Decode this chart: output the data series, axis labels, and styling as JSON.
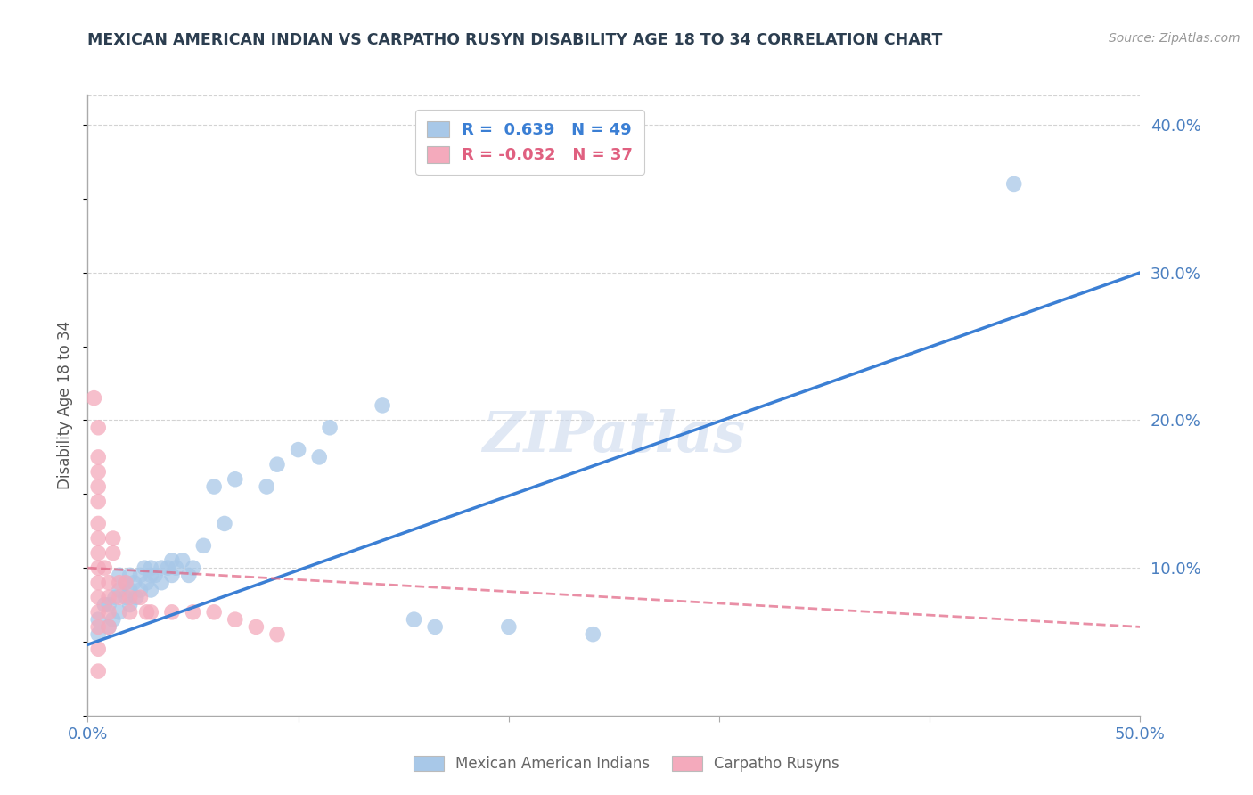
{
  "title": "MEXICAN AMERICAN INDIAN VS CARPATHO RUSYN DISABILITY AGE 18 TO 34 CORRELATION CHART",
  "source": "Source: ZipAtlas.com",
  "ylabel": "Disability Age 18 to 34",
  "xlim": [
    0.0,
    0.5
  ],
  "ylim": [
    0.0,
    0.42
  ],
  "xticks": [
    0.0,
    0.1,
    0.2,
    0.3,
    0.4,
    0.5
  ],
  "yticks": [
    0.1,
    0.2,
    0.3,
    0.4
  ],
  "xtick_labels": [
    "0.0%",
    "",
    "",
    "",
    "",
    "50.0%"
  ],
  "ytick_labels": [
    "10.0%",
    "20.0%",
    "30.0%",
    "40.0%"
  ],
  "legend_blue_r": "R =  0.639",
  "legend_blue_n": "N = 49",
  "legend_pink_r": "R = -0.032",
  "legend_pink_n": "N = 37",
  "watermark": "ZIPatlas",
  "blue_color": "#a8c8e8",
  "pink_color": "#f4aabc",
  "blue_line_color": "#3b7fd4",
  "pink_line_color": "#e06080",
  "background_color": "#ffffff",
  "grid_color": "#c8c8c8",
  "blue_scatter": [
    [
      0.005,
      0.055
    ],
    [
      0.005,
      0.065
    ],
    [
      0.008,
      0.075
    ],
    [
      0.01,
      0.06
    ],
    [
      0.01,
      0.075
    ],
    [
      0.012,
      0.065
    ],
    [
      0.013,
      0.08
    ],
    [
      0.015,
      0.07
    ],
    [
      0.015,
      0.085
    ],
    [
      0.015,
      0.095
    ],
    [
      0.018,
      0.08
    ],
    [
      0.018,
      0.09
    ],
    [
      0.02,
      0.075
    ],
    [
      0.02,
      0.085
    ],
    [
      0.02,
      0.095
    ],
    [
      0.022,
      0.09
    ],
    [
      0.023,
      0.08
    ],
    [
      0.025,
      0.085
    ],
    [
      0.025,
      0.095
    ],
    [
      0.027,
      0.1
    ],
    [
      0.028,
      0.09
    ],
    [
      0.03,
      0.085
    ],
    [
      0.03,
      0.095
    ],
    [
      0.03,
      0.1
    ],
    [
      0.032,
      0.095
    ],
    [
      0.035,
      0.09
    ],
    [
      0.035,
      0.1
    ],
    [
      0.038,
      0.1
    ],
    [
      0.04,
      0.095
    ],
    [
      0.04,
      0.105
    ],
    [
      0.042,
      0.1
    ],
    [
      0.045,
      0.105
    ],
    [
      0.048,
      0.095
    ],
    [
      0.05,
      0.1
    ],
    [
      0.055,
      0.115
    ],
    [
      0.06,
      0.155
    ],
    [
      0.065,
      0.13
    ],
    [
      0.07,
      0.16
    ],
    [
      0.085,
      0.155
    ],
    [
      0.09,
      0.17
    ],
    [
      0.1,
      0.18
    ],
    [
      0.11,
      0.175
    ],
    [
      0.115,
      0.195
    ],
    [
      0.14,
      0.21
    ],
    [
      0.155,
      0.065
    ],
    [
      0.165,
      0.06
    ],
    [
      0.2,
      0.06
    ],
    [
      0.24,
      0.055
    ],
    [
      0.44,
      0.36
    ]
  ],
  "pink_scatter": [
    [
      0.003,
      0.215
    ],
    [
      0.005,
      0.195
    ],
    [
      0.005,
      0.175
    ],
    [
      0.005,
      0.165
    ],
    [
      0.005,
      0.155
    ],
    [
      0.005,
      0.145
    ],
    [
      0.005,
      0.13
    ],
    [
      0.005,
      0.12
    ],
    [
      0.005,
      0.11
    ],
    [
      0.005,
      0.1
    ],
    [
      0.005,
      0.09
    ],
    [
      0.005,
      0.08
    ],
    [
      0.005,
      0.07
    ],
    [
      0.005,
      0.06
    ],
    [
      0.005,
      0.045
    ],
    [
      0.005,
      0.03
    ],
    [
      0.008,
      0.1
    ],
    [
      0.01,
      0.09
    ],
    [
      0.01,
      0.08
    ],
    [
      0.01,
      0.07
    ],
    [
      0.01,
      0.06
    ],
    [
      0.012,
      0.11
    ],
    [
      0.012,
      0.12
    ],
    [
      0.015,
      0.09
    ],
    [
      0.015,
      0.08
    ],
    [
      0.018,
      0.09
    ],
    [
      0.02,
      0.08
    ],
    [
      0.02,
      0.07
    ],
    [
      0.025,
      0.08
    ],
    [
      0.028,
      0.07
    ],
    [
      0.03,
      0.07
    ],
    [
      0.04,
      0.07
    ],
    [
      0.05,
      0.07
    ],
    [
      0.06,
      0.07
    ],
    [
      0.07,
      0.065
    ],
    [
      0.08,
      0.06
    ],
    [
      0.09,
      0.055
    ]
  ],
  "blue_trendline": [
    [
      0.0,
      0.048
    ],
    [
      0.5,
      0.3
    ]
  ],
  "pink_trendline": [
    [
      0.0,
      0.1
    ],
    [
      0.5,
      0.06
    ]
  ]
}
